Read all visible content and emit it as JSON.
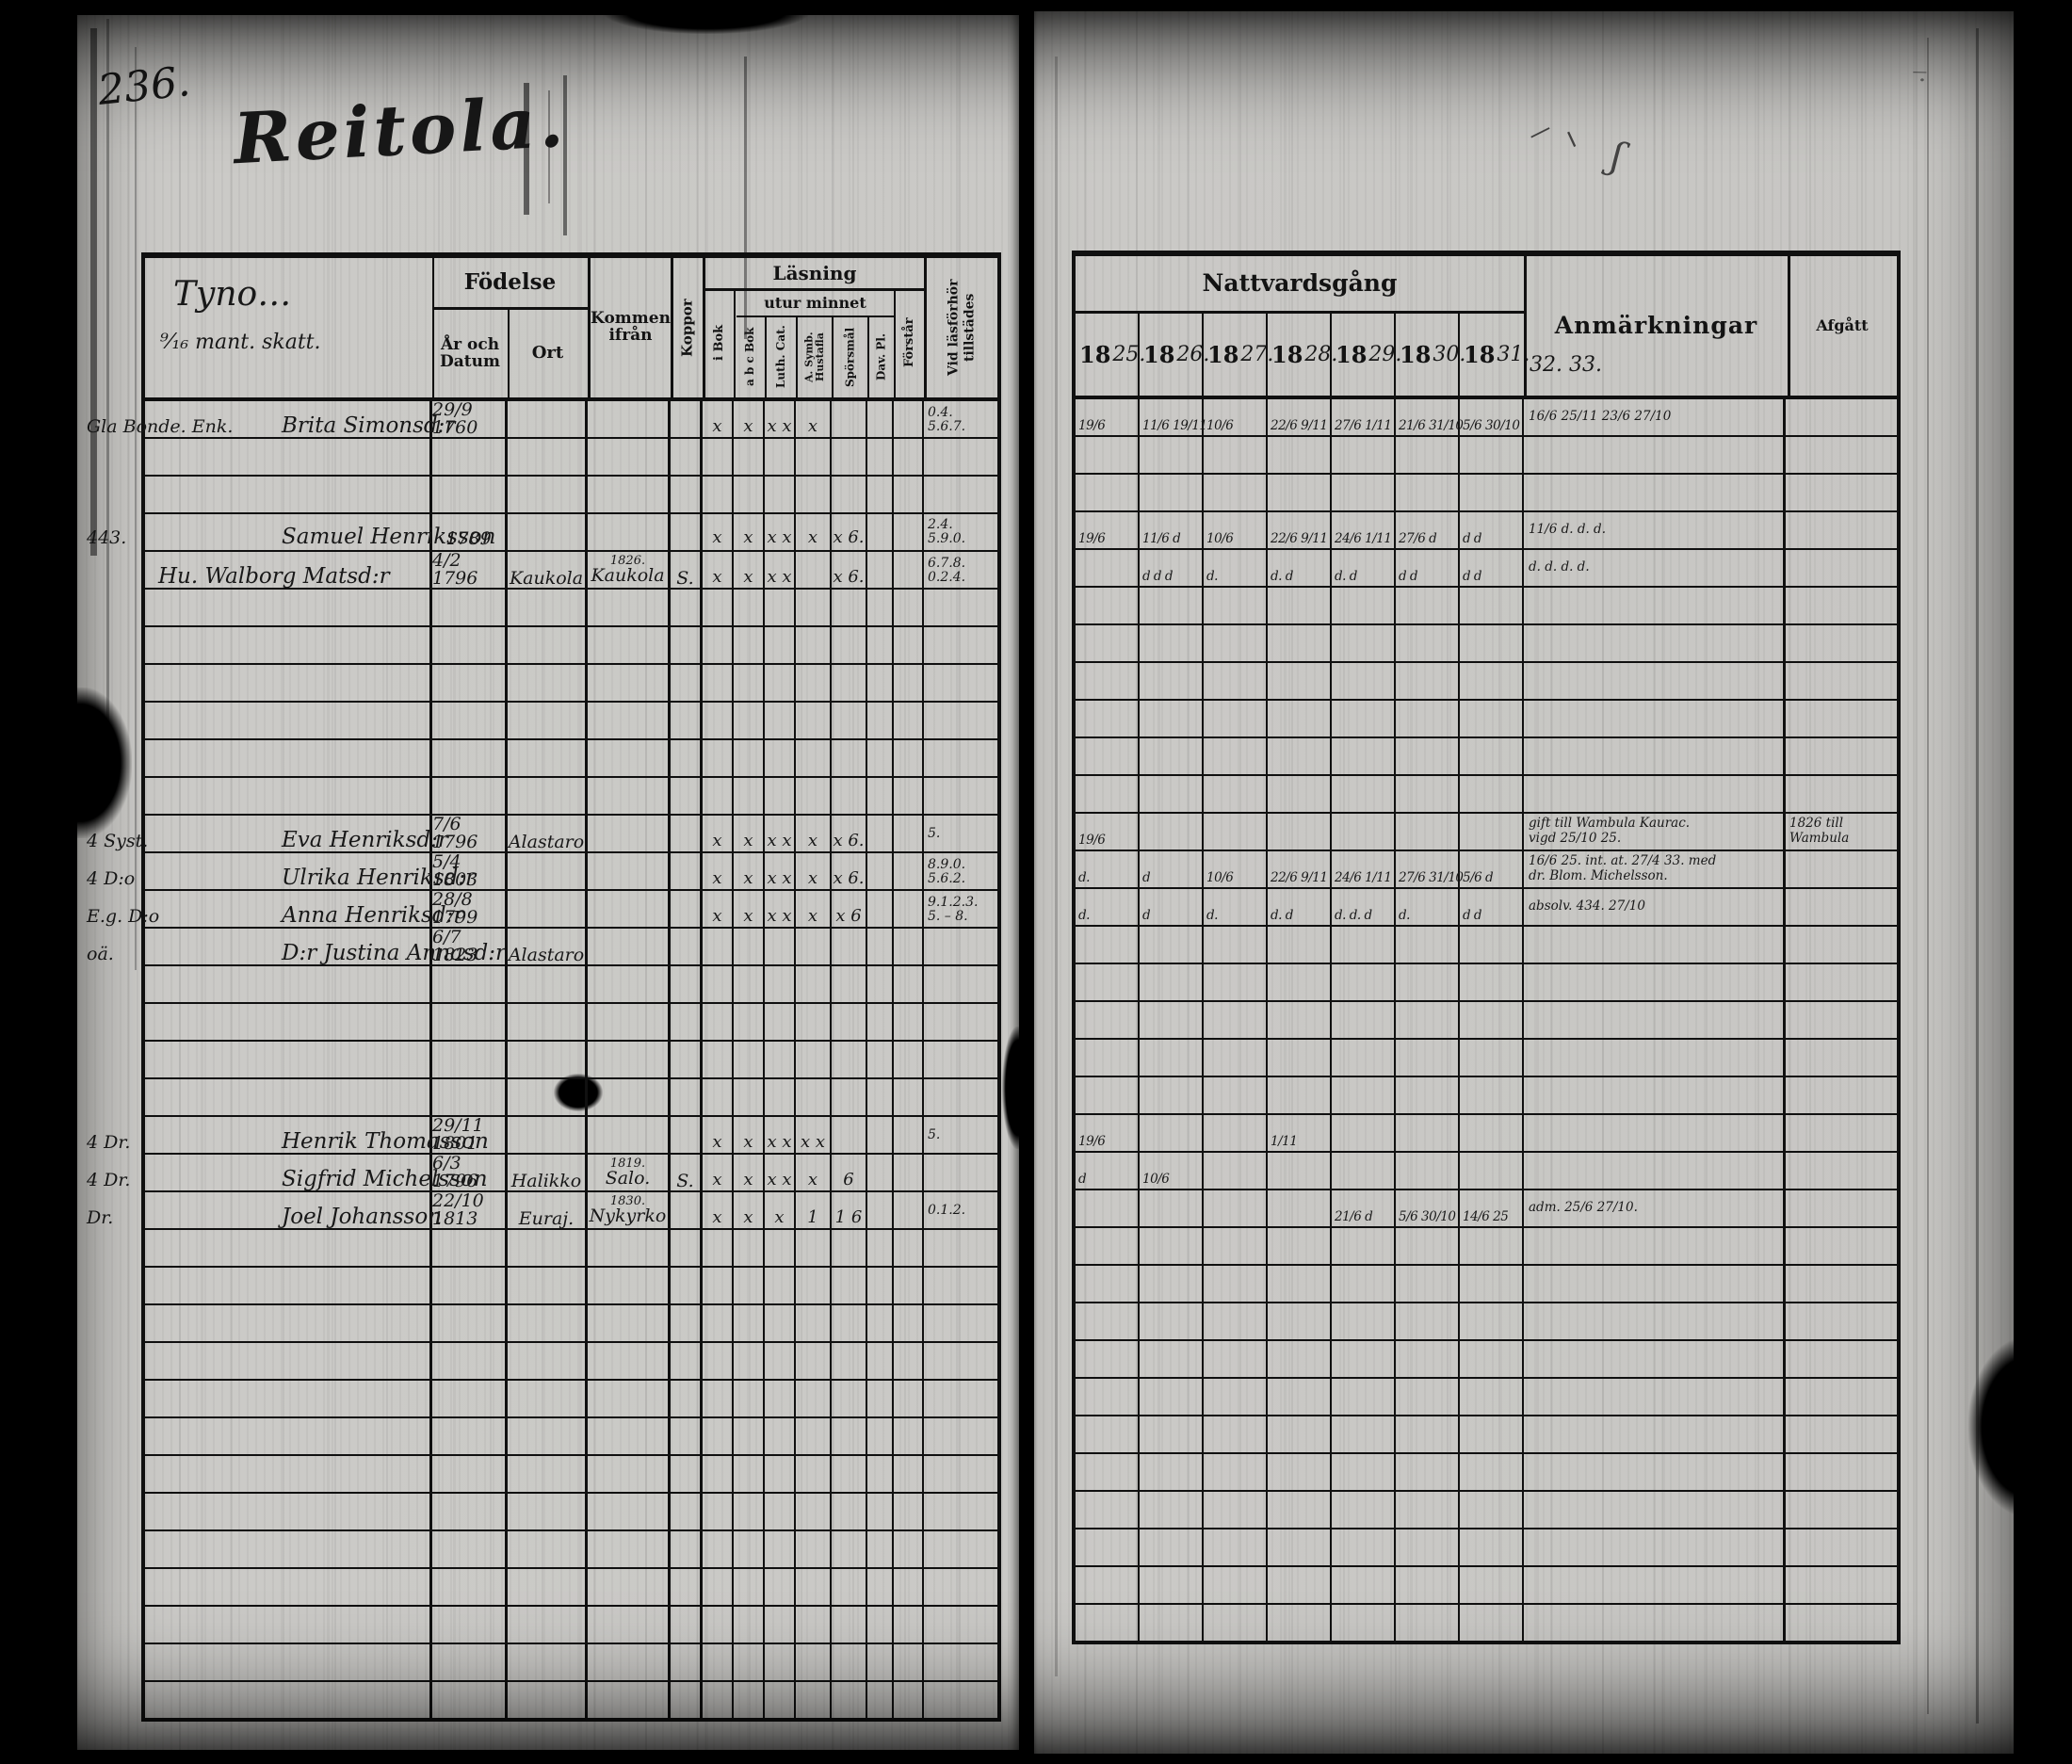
{
  "page": {
    "number": "236.",
    "title": "Reitola.",
    "corner_scribble": "⸍⸌ ʃ",
    "edge_scribble": "⸍·"
  },
  "left_table": {
    "hand_header_line1": "Tyno…",
    "hand_header_line2": "⁹⁄₁₆ mant. skatt.",
    "columns": {
      "fodelse": "Födelse",
      "ar_och_datum": "År och Datum",
      "ort": "Ort",
      "kommen_ifran": "Kommen ifrån",
      "koppor": "Koppor",
      "lasning": "Läsning",
      "utur_minnet": "utur minnet",
      "i_bok": "i Bok",
      "abc_bok": "a b c Bok",
      "luth_cat": "Luth. Cat.",
      "a_symb": "A. Symb. Hustafla",
      "sporsmal": "Spörsmål",
      "dav_pl": "Dav. Pl.",
      "forstar": "Förstår",
      "tillstades": "Vid läsförhör tillstädes"
    }
  },
  "right_table": {
    "nattvardsgang": "Nattvardsgång",
    "year_prefix": "18",
    "years": [
      "25.",
      "26.",
      "27.",
      "28.",
      "29.",
      "30.",
      "31."
    ],
    "years_hand_extra": "32. 33.",
    "anmarkningar": "Anmärkningar",
    "afgatt": "Afgått"
  },
  "rows": [
    {
      "m": "Gla Bonde. Enk.",
      "n": "Brita Simonsd:r",
      "b": "29/9 1760",
      "x": [
        "x",
        "x",
        "x x",
        "x",
        "",
        "",
        ""
      ],
      "t1": "0.4.",
      "t2": "5.6.7.",
      "c": [
        "19/6",
        "11/6 19/11",
        "10/6",
        "22/6 9/11",
        "27/6 1/11",
        "21/6 31/10",
        "5/6 30/10"
      ],
      "a1": "16/6 25/11 23/6 27/10",
      "a2": ""
    },
    {},
    {},
    {
      "m": "443.",
      "n": "Samuel Henriksson",
      "b": "1789",
      "x": [
        "x",
        "x",
        "x x",
        "x",
        "x 6.",
        "",
        ""
      ],
      "t1": "2.4.",
      "t2": "5.9.0.",
      "c": [
        "19/6",
        "11/6 d",
        "10/6",
        "22/6 9/11",
        "24/6 1/11",
        "27/6 d",
        "d d"
      ],
      "a1": "11/6 d. d. d.",
      "a2": ""
    },
    {
      "n": "Hu. Walborg Matsd:r",
      "p": 0,
      "b": "4/2 1796",
      "o": "Kaukola",
      "k": "Kaukola",
      "ky": "1826.",
      "kp": "S.",
      "x": [
        "x",
        "x",
        "x x",
        "",
        "x 6.",
        "",
        ""
      ],
      "t1": "6.7.8.",
      "t2": "0.2.4.",
      "c": [
        "",
        "d d d",
        "d.",
        "d. d",
        "d. d",
        "d d",
        "d d"
      ],
      "a1": "d. d. d. d.",
      "a2": ""
    },
    {},
    {},
    {},
    {},
    {},
    {},
    {
      "m": "4 Syst.",
      "n": "Eva Henriksd:r",
      "b": "7/6 1796",
      "o": "Alastaro",
      "x": [
        "x",
        "x",
        "x x",
        "x",
        "x 6.",
        "",
        ""
      ],
      "t1": "5.",
      "t2": "",
      "c": [
        "19/6",
        "",
        "",
        "",
        "",
        "",
        ""
      ],
      "a1": "gift till Wambula Kaurac.",
      "a2": "vigd 25/10 25.",
      "af1": "1826 till",
      "af2": "Wambula"
    },
    {
      "m": "4 D:o",
      "n": "Ulrika Henriksd:r",
      "b": "5/4 1803",
      "x": [
        "x",
        "x",
        "x x",
        "x",
        "x 6.",
        "",
        ""
      ],
      "t1": "8.9.0.",
      "t2": "5.6.2.",
      "c": [
        "d.",
        "d",
        "10/6",
        "22/6 9/11",
        "24/6 1/11",
        "27/6 31/10",
        "5/6 d"
      ],
      "a1": "16/6 25. int. at. 27/4 33. med",
      "a2": "dr. Blom. Michelsson."
    },
    {
      "m": "E.g. D:o",
      "n": "Anna Henriksd:r",
      "b": "28/8 1799",
      "x": [
        "x",
        "x",
        "x x",
        "x",
        "x 6",
        "",
        ""
      ],
      "t1": "9.1.2.3.",
      "t2": "5. – 8.",
      "c": [
        "d.",
        "d",
        "d.",
        "d. d",
        "d. d. d",
        "d.",
        "d d"
      ],
      "a1": "absolv. 434. 27/10",
      "a2": ""
    },
    {
      "m": "oä.",
      "n": "D:r Justina Annasd:r",
      "b": "6/7 1823",
      "o": "Alastaro"
    },
    {},
    {},
    {},
    {},
    {
      "m": "4 Dr.",
      "n": "Henrik Thomasson",
      "b": "29/11 1801",
      "x": [
        "x",
        "x",
        "x x",
        "x x",
        "",
        "",
        ""
      ],
      "t1": "5.",
      "t2": "",
      "c": [
        "19/6",
        "",
        "",
        "1/11",
        "",
        "",
        ""
      ]
    },
    {
      "m": "4 Dr.",
      "n": "Sigfrid Michelsson",
      "b": "6/3 1796",
      "o": "Halikko",
      "k": "Salo.",
      "ky": "1819.",
      "kp": "S.",
      "x": [
        "x",
        "x",
        "x x",
        "x",
        "6",
        "",
        ""
      ],
      "c": [
        "d",
        "10/6",
        "",
        "",
        "",
        "",
        ""
      ]
    },
    {
      "m": "Dr.",
      "n": "Joel Johansson",
      "b": "22/10 1813",
      "o": "Euraj.",
      "k": "Nykyrko",
      "ky": "1830.",
      "x": [
        "x",
        "x",
        "x",
        "1",
        "1 6",
        "",
        ""
      ],
      "t1": "0.1.2.",
      "t2": "",
      "c": [
        "",
        "",
        "",
        "",
        "21/6 d",
        "5/6 30/10",
        "14/6 25"
      ],
      "a1": "adm. 25/6 27/10.",
      "a2": ""
    },
    {},
    {},
    {},
    {},
    {},
    {},
    {},
    {},
    {},
    {},
    {},
    {},
    {}
  ]
}
